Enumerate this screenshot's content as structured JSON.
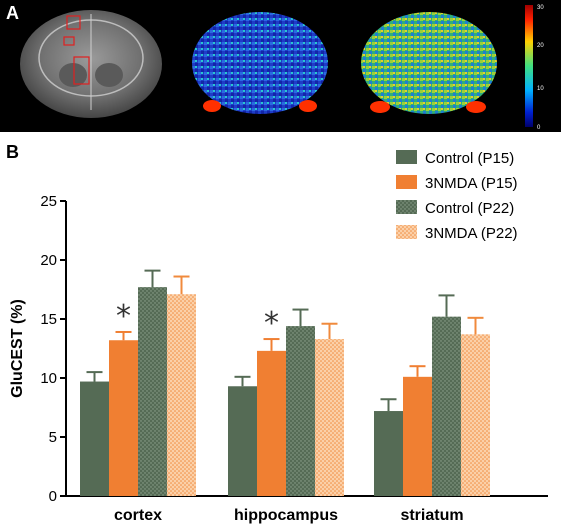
{
  "panel_a": {
    "label": "A",
    "colorbar": {
      "ticks": [
        "30",
        "20",
        "10",
        "0"
      ]
    }
  },
  "panel_b": {
    "label": "B"
  },
  "chart_data": {
    "type": "bar",
    "categories": [
      "cortex",
      "hippocampus",
      "striatum"
    ],
    "series": [
      {
        "name": "Control (P15)",
        "values": [
          9.7,
          9.3,
          7.2
        ],
        "errors": [
          0.8,
          0.8,
          1.0
        ],
        "color": "#556b55",
        "pattern": "solid"
      },
      {
        "name": "3NMDA (P15)",
        "values": [
          13.2,
          12.3,
          10.1
        ],
        "errors": [
          0.7,
          1.0,
          0.9
        ],
        "color": "#f07f32",
        "pattern": "solid"
      },
      {
        "name": "Control (P22)",
        "values": [
          17.7,
          14.4,
          15.2
        ],
        "errors": [
          1.4,
          1.4,
          1.8
        ],
        "color": "#556b55",
        "pattern": "dotted"
      },
      {
        "name": "3NMDA (P22)",
        "values": [
          17.1,
          13.3,
          13.7
        ],
        "errors": [
          1.5,
          1.3,
          1.4
        ],
        "color": "#f5a35e",
        "pattern": "dotted"
      }
    ],
    "significance": [
      {
        "category": "cortex",
        "series": "3NMDA (P15)",
        "mark": "*"
      },
      {
        "category": "hippocampus",
        "series": "3NMDA (P15)",
        "mark": "*"
      }
    ],
    "ylabel": "GluCEST (%)",
    "xlabel": "",
    "ylim": [
      0,
      25
    ],
    "yticks": [
      0,
      5,
      10,
      15,
      20,
      25
    ],
    "legend_position": "top-right",
    "grid": false
  }
}
